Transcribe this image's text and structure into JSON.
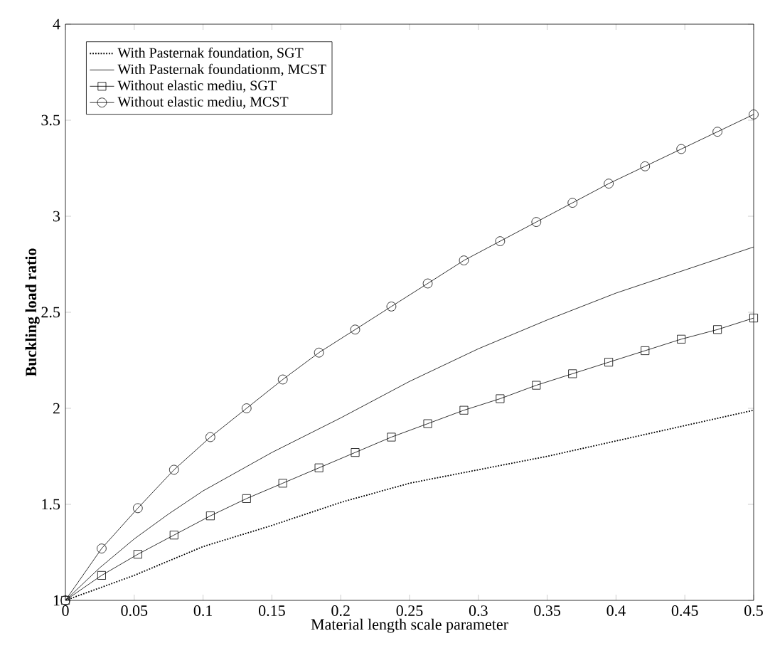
{
  "chart_data": {
    "type": "line",
    "xlabel": "Material length scale parameter",
    "ylabel": "Buckling load ratio",
    "xlim": [
      0,
      0.5
    ],
    "ylim": [
      1,
      4
    ],
    "xticks": [
      0,
      0.05,
      0.1,
      0.15,
      0.2,
      0.25,
      0.3,
      0.35,
      0.4,
      0.45,
      0.5
    ],
    "yticks": [
      1,
      1.5,
      2,
      2.5,
      3,
      3.5,
      4
    ],
    "legend": "top left",
    "grid": false,
    "series": [
      {
        "name": "With Pasternak foundation, SGT",
        "color": "#000000",
        "line_style": "dotted",
        "marker": "none",
        "x": [
          0,
          0.05,
          0.1,
          0.15,
          0.2,
          0.25,
          0.3,
          0.35,
          0.4,
          0.45,
          0.5
        ],
        "values": [
          1,
          1.13,
          1.28,
          1.39,
          1.51,
          1.61,
          1.68,
          1.75,
          1.83,
          1.91,
          1.99
        ]
      },
      {
        "name": "With Pasternak foundationm, MCST",
        "color": "#000000",
        "line_style": "solid",
        "marker": "none",
        "x": [
          0,
          0.025,
          0.05,
          0.075,
          0.1,
          0.15,
          0.2,
          0.25,
          0.3,
          0.35,
          0.4,
          0.45,
          0.5
        ],
        "values": [
          1,
          1.17,
          1.32,
          1.45,
          1.57,
          1.77,
          1.95,
          2.14,
          2.31,
          2.46,
          2.6,
          2.72,
          2.84
        ]
      },
      {
        "name": "Without elastic mediu, SGT",
        "color": "#000000",
        "line_style": "solid",
        "marker": "square",
        "x": [
          0,
          0.0263,
          0.0526,
          0.0789,
          0.1053,
          0.1316,
          0.1579,
          0.1842,
          0.2105,
          0.2368,
          0.2632,
          0.2895,
          0.3158,
          0.3421,
          0.3684,
          0.3947,
          0.4211,
          0.4474,
          0.4737,
          0.5
        ],
        "values": [
          1,
          1.13,
          1.24,
          1.34,
          1.44,
          1.53,
          1.61,
          1.69,
          1.77,
          1.85,
          1.92,
          1.99,
          2.05,
          2.12,
          2.18,
          2.24,
          2.3,
          2.36,
          2.41,
          2.47
        ]
      },
      {
        "name": "Without elastic mediu, MCST",
        "color": "#000000",
        "line_style": "solid",
        "marker": "circle",
        "x": [
          0,
          0.0263,
          0.0526,
          0.0789,
          0.1053,
          0.1316,
          0.1579,
          0.1842,
          0.2105,
          0.2368,
          0.2632,
          0.2895,
          0.3158,
          0.3421,
          0.3684,
          0.3947,
          0.4211,
          0.4474,
          0.4737,
          0.5
        ],
        "values": [
          1,
          1.27,
          1.48,
          1.68,
          1.85,
          2.0,
          2.15,
          2.29,
          2.41,
          2.53,
          2.65,
          2.77,
          2.87,
          2.97,
          3.07,
          3.17,
          3.26,
          3.35,
          3.44,
          3.53
        ]
      }
    ]
  }
}
